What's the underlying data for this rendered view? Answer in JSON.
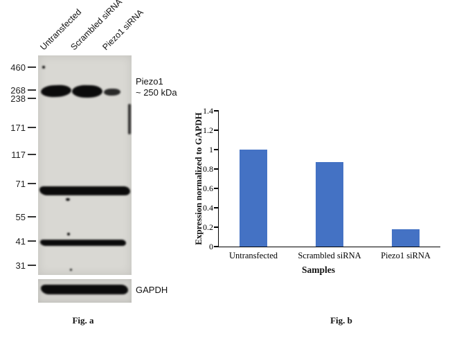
{
  "figure": {
    "panel_a": {
      "lane_labels": [
        "Untransfected",
        "Scrambled siRNA",
        "Piezo1 siRNA"
      ],
      "markers": [
        "460",
        "268",
        "238",
        "171",
        "117",
        "71",
        "55",
        "41",
        "31"
      ],
      "band_annotation_line1": "Piezo1",
      "band_annotation_line2": "~ 250 kDa",
      "loading_control_label": "GAPDH",
      "caption": "Fig. a"
    },
    "panel_b": {
      "caption": "Fig. b"
    }
  },
  "chart_data": {
    "type": "bar",
    "categories": [
      "Untransfected",
      "Scrambled siRNA",
      "Piezo1 siRNA"
    ],
    "values": [
      1.0,
      0.87,
      0.18
    ],
    "title": "",
    "xlabel": "Samples",
    "ylabel": "Expression normalized to GAPDH",
    "ylim": [
      0,
      1.4
    ],
    "yticks": [
      0,
      0.2,
      0.4,
      0.6,
      0.8,
      1,
      1.2,
      1.4
    ],
    "bar_color": "#4472c4",
    "grid": false,
    "legend": "none"
  }
}
